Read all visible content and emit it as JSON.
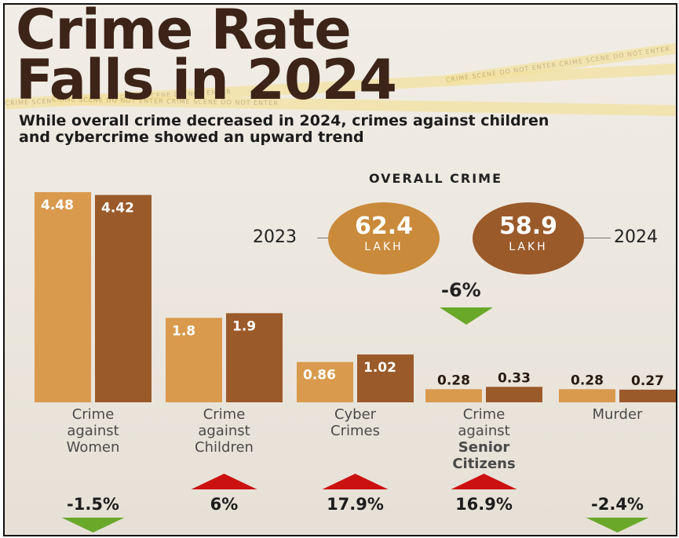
{
  "header": {
    "title_line1": "Crime Rate",
    "title_line2": "Falls in 2024",
    "subtitle": "While overall crime decreased in 2024, crimes against children and cybercrime showed an upward trend"
  },
  "tape_text": "CRIME SCENE  DO NOT ENTER  CRIME SCENE  DO NOT ENTER",
  "overall": {
    "title": "OVERALL CRIME",
    "year_2023": "2023",
    "year_2024": "2024",
    "value_2023": "62.4",
    "value_2024": "58.9",
    "unit": "LAKH",
    "change": "-6%",
    "trend": "down"
  },
  "colors": {
    "bar_2023": "#d99a4e",
    "bar_2024": "#9b5a2a",
    "title": "#3d2418",
    "up": "#cc1111",
    "down": "#6aa82a"
  },
  "chart_data": {
    "type": "bar",
    "categories": [
      "Crime against Women",
      "Crime against Children",
      "Cyber Crimes",
      "Crime against Senior Citizens",
      "Murder"
    ],
    "category_lines": [
      [
        "Crime",
        "against",
        "Women"
      ],
      [
        "Crime",
        "against",
        "Children"
      ],
      [
        "Cyber",
        "Crimes"
      ],
      [
        "Crime",
        "against",
        "Senior",
        "Citizens"
      ],
      [
        "Murder"
      ]
    ],
    "series": [
      {
        "values": [
          4.48,
          1.8,
          0.86,
          0.28,
          0.28
        ],
        "labels": [
          "4.48",
          "1.8",
          "0.86",
          "0.28",
          "0.28"
        ]
      },
      {
        "values": [
          4.42,
          1.9,
          1.02,
          0.33,
          0.27
        ],
        "labels": [
          "4.42",
          "1.9",
          "1.02",
          "0.33",
          "0.27"
        ]
      }
    ],
    "changes": [
      "-1.5%",
      "6%",
      "17.9%",
      "16.9%",
      "-2.4%"
    ],
    "trends": [
      "down",
      "up",
      "up",
      "up",
      "down"
    ],
    "ylim": [
      0,
      4.48
    ]
  }
}
